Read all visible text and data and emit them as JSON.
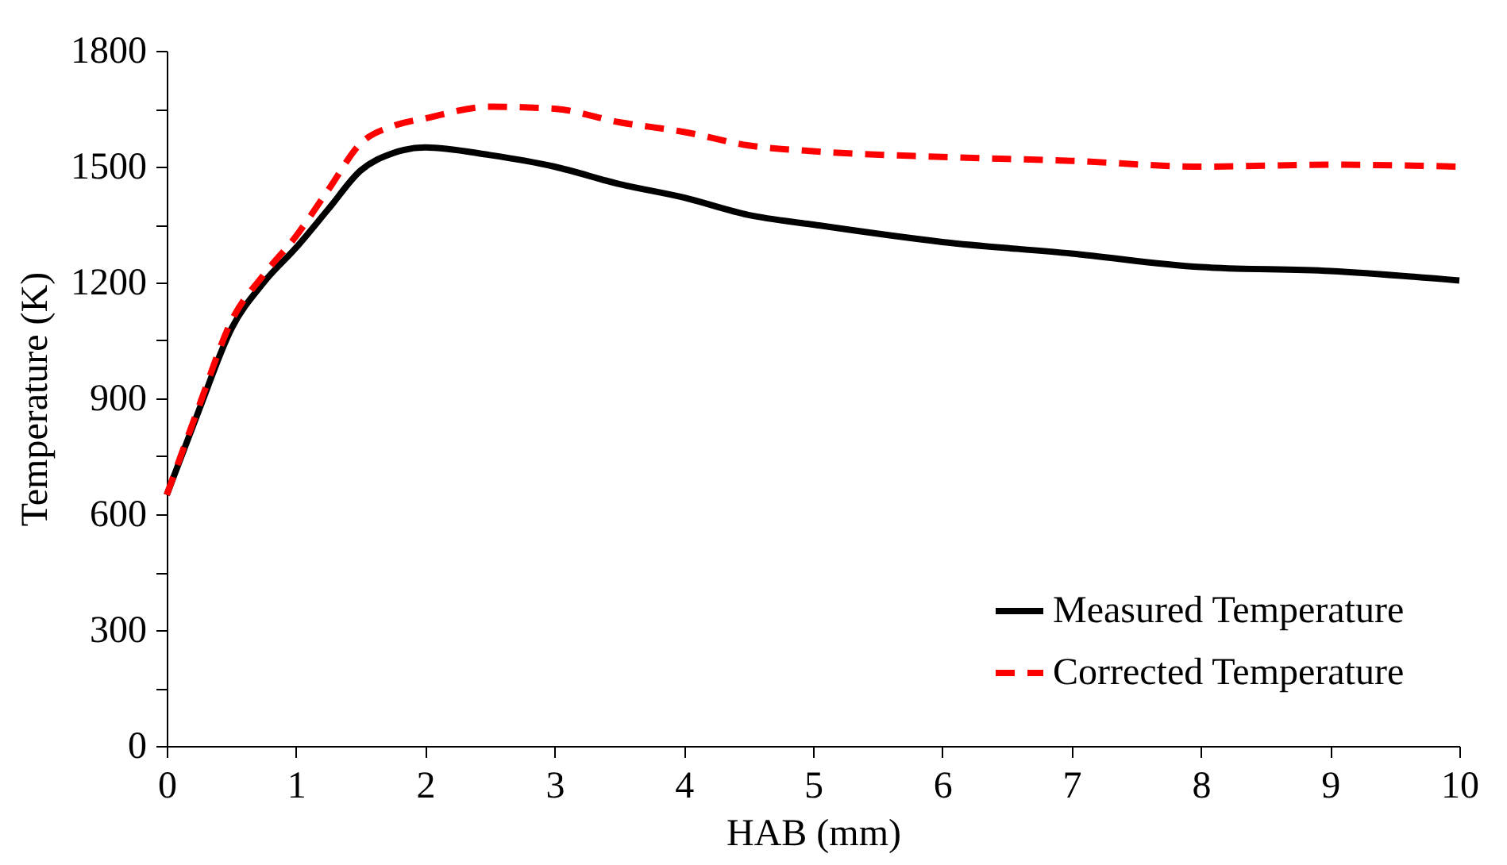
{
  "chart_data": {
    "type": "line",
    "xlabel": "HAB (mm)",
    "ylabel": "Temperature (K)",
    "xlim": [
      0,
      10
    ],
    "xticks": [
      0,
      1,
      2,
      3,
      4,
      5,
      6,
      7,
      8,
      9,
      10
    ],
    "ylim": [
      0,
      1800
    ],
    "yticks": [
      0,
      {
        "value": 150,
        "label": null
      },
      300,
      {
        "value": 450,
        "label": null
      },
      600,
      {
        "value": 750,
        "label": null
      },
      900,
      {
        "value": 1050,
        "label": null
      },
      1200,
      {
        "value": 1350,
        "label": null
      },
      1500,
      {
        "value": 1650,
        "label": null
      },
      1800
    ],
    "grid": false,
    "legend": "bottom right",
    "marker": "none",
    "x": [
      0,
      0.25,
      0.5,
      0.75,
      1,
      1.25,
      1.5,
      1.75,
      2,
      2.5,
      3,
      3.5,
      4,
      4.5,
      5,
      6,
      7,
      8,
      9,
      10
    ],
    "series": [
      {
        "name": "Measured Temperature",
        "color": "#000000",
        "line_style": "solid",
        "values": [
          650,
          870,
          1080,
          1200,
          1290,
          1390,
          1490,
          1535,
          1550,
          1530,
          1500,
          1455,
          1420,
          1375,
          1350,
          1305,
          1275,
          1240,
          1230,
          1205
        ]
      },
      {
        "name": "Corrected Temperature",
        "color": "#ff0000",
        "line_style": "dashed",
        "values": [
          650,
          880,
          1100,
          1220,
          1320,
          1440,
          1560,
          1605,
          1625,
          1655,
          1650,
          1615,
          1590,
          1555,
          1540,
          1525,
          1515,
          1500,
          1505,
          1500
        ]
      }
    ]
  }
}
